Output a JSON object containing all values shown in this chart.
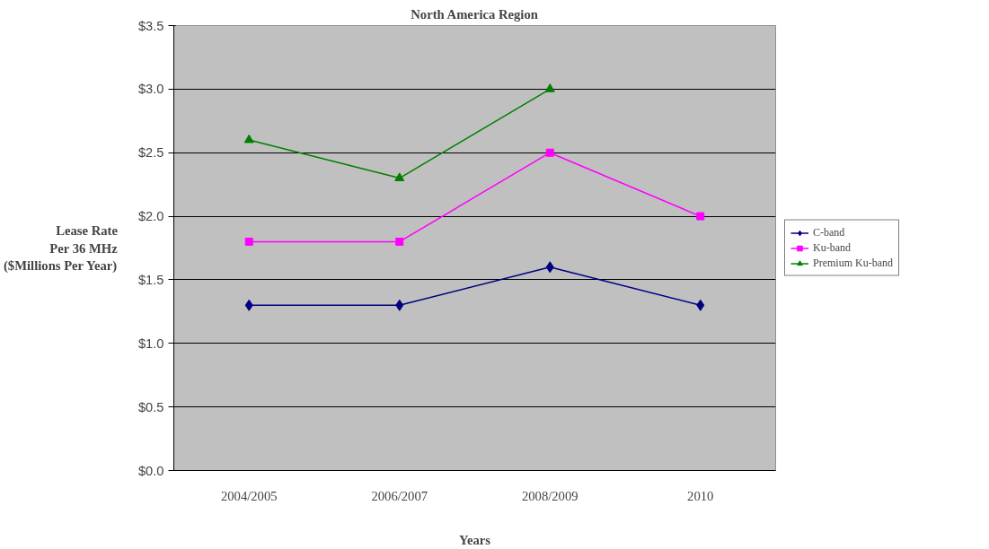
{
  "chart_data": {
    "type": "line",
    "title": "North America Region",
    "xlabel": "Years",
    "ylabel": "Lease Rate\nPer 36 MHz\n($Millions Per Year)",
    "categories": [
      "2004/2005",
      "2006/2007",
      "2008/2009",
      "2010"
    ],
    "series": [
      {
        "name": "C-band",
        "color": "#000080",
        "marker": "diamond",
        "values": [
          1.3,
          1.3,
          1.6,
          1.3
        ]
      },
      {
        "name": "Ku-band",
        "color": "#ff00ff",
        "marker": "square",
        "values": [
          1.8,
          1.8,
          2.5,
          2.0
        ]
      },
      {
        "name": "Premium Ku-band",
        "color": "#008000",
        "marker": "triangle",
        "values": [
          2.6,
          2.3,
          3.0,
          null
        ]
      }
    ],
    "ylim": [
      0,
      3.5
    ],
    "yticks": [
      {
        "value": 0,
        "label": "$0.0"
      },
      {
        "value": 0.5,
        "label": "$0.5"
      },
      {
        "value": 1.0,
        "label": "$1.0"
      },
      {
        "value": 1.5,
        "label": "$1.5"
      },
      {
        "value": 2.0,
        "label": "$2.0"
      },
      {
        "value": 2.5,
        "label": "$2.5"
      },
      {
        "value": 3.0,
        "label": "$3.0"
      },
      {
        "value": 3.5,
        "label": "$3.5"
      }
    ],
    "grid": "y",
    "legend": "right",
    "line_style": "solid"
  }
}
